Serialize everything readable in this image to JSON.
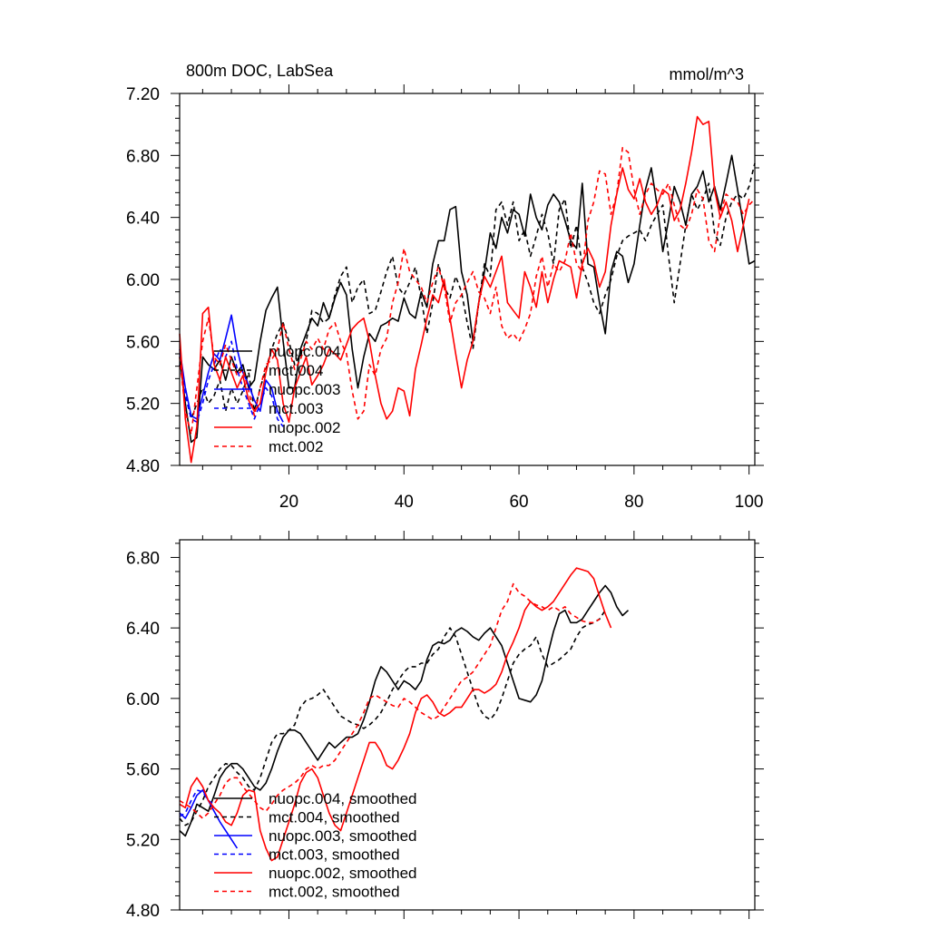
{
  "colors": {
    "black": "#000000",
    "blue": "#0000ff",
    "red": "#ff0000"
  },
  "chart_data": [
    {
      "type": "line",
      "title": "800m DOC, LabSea",
      "units": "mmol/m^3",
      "xlim": [
        1,
        101
      ],
      "ylim": [
        4.8,
        7.2
      ],
      "xticks": [
        20,
        40,
        60,
        80,
        100
      ],
      "xtick_labels": [
        "20",
        "40",
        "60",
        "80",
        "100"
      ],
      "yticks": [
        4.8,
        5.2,
        5.6,
        6.0,
        6.4,
        6.8,
        7.2
      ],
      "ytick_labels": [
        "4.80",
        "5.20",
        "5.60",
        "6.00",
        "6.40",
        "6.80",
        "7.20"
      ],
      "legend_position": "lower-left",
      "series": [
        {
          "name": "nuopc.004",
          "color": "black",
          "dash": false,
          "x_start": 1,
          "values": [
            5.5,
            5.2,
            4.95,
            4.98,
            5.5,
            5.45,
            5.42,
            5.48,
            5.35,
            5.5,
            5.4,
            5.45,
            5.3,
            5.35,
            5.6,
            5.8,
            5.88,
            5.95,
            5.6,
            5.3,
            5.3,
            5.55,
            5.65,
            5.75,
            5.7,
            5.85,
            5.75,
            5.88,
            5.98,
            5.9,
            5.55,
            5.3,
            5.5,
            5.65,
            5.6,
            5.7,
            5.72,
            5.75,
            5.73,
            5.88,
            5.78,
            5.75,
            5.92,
            5.82,
            6.1,
            6.25,
            6.25,
            6.45,
            6.47,
            6.05,
            5.9,
            5.6,
            5.85,
            6.05,
            6.3,
            6.2,
            6.4,
            6.3,
            6.45,
            6.42,
            6.28,
            6.55,
            6.4,
            6.32,
            6.48,
            6.55,
            6.5,
            6.38,
            6.25,
            6.2,
            6.62,
            6.1,
            6.08,
            5.85,
            5.65,
            6.05,
            6.18,
            6.15,
            5.98,
            6.1,
            6.35,
            6.58,
            6.72,
            6.48,
            6.18,
            6.38,
            6.6,
            6.5,
            6.35,
            6.55,
            6.6,
            6.7,
            6.5,
            6.6,
            6.45,
            6.62,
            6.8,
            6.58,
            6.35,
            6.1,
            6.12
          ]
        },
        {
          "name": "mct.004",
          "color": "black",
          "dash": true,
          "x_start": 1,
          "values": [
            5.45,
            5.3,
            5.1,
            5.2,
            5.3,
            5.2,
            5.25,
            5.35,
            5.15,
            5.3,
            5.2,
            5.28,
            5.4,
            5.15,
            5.3,
            5.42,
            5.55,
            5.65,
            5.72,
            5.6,
            5.45,
            5.52,
            5.6,
            5.8,
            5.78,
            5.72,
            5.75,
            5.9,
            6.02,
            6.08,
            5.85,
            5.95,
            6.0,
            5.78,
            5.8,
            5.92,
            6.05,
            6.15,
            5.95,
            5.9,
            5.98,
            6.08,
            5.88,
            5.65,
            5.85,
            6.1,
            5.95,
            5.88,
            6.02,
            5.92,
            5.72,
            5.55,
            5.85,
            6.1,
            6.02,
            6.45,
            6.5,
            6.35,
            6.5,
            6.25,
            6.32,
            6.15,
            6.28,
            6.42,
            6.3,
            6.1,
            6.45,
            6.52,
            6.2,
            6.35,
            6.08,
            5.98,
            5.85,
            5.78,
            5.9,
            6.0,
            6.15,
            6.25,
            6.28,
            6.3,
            6.32,
            6.25,
            6.35,
            6.42,
            6.48,
            6.15,
            5.85,
            6.1,
            6.35,
            6.55,
            6.45,
            6.52,
            6.62,
            6.3,
            6.22,
            6.4,
            6.5,
            6.55,
            6.52,
            6.6,
            6.75
          ]
        },
        {
          "name": "nuopc.003",
          "color": "blue",
          "dash": false,
          "x_start": 1,
          "values": [
            5.55,
            5.3,
            5.12,
            5.1,
            5.25,
            5.4,
            5.52,
            5.48,
            5.62,
            5.77,
            5.55,
            5.4,
            5.32,
            5.22,
            5.15,
            5.35,
            5.3,
            5.15,
            5.08
          ]
        },
        {
          "name": "mct.003",
          "color": "blue",
          "dash": true,
          "x_start": 1,
          "values": [
            5.45,
            5.25,
            5.1,
            5.08,
            5.2,
            5.35,
            5.45,
            5.55,
            5.5,
            5.6,
            5.42,
            5.3,
            5.2,
            5.1,
            5.2,
            5.3,
            5.25,
            5.1,
            5.05
          ]
        },
        {
          "name": "nuopc.002",
          "color": "red",
          "dash": false,
          "x_start": 1,
          "values": [
            5.65,
            5.1,
            4.82,
            5.05,
            5.78,
            5.82,
            5.45,
            5.35,
            5.5,
            5.4,
            5.3,
            5.38,
            5.22,
            5.15,
            5.2,
            5.4,
            5.55,
            5.48,
            5.2,
            5.08,
            5.3,
            5.4,
            5.5,
            5.32,
            5.38,
            5.45,
            5.55,
            5.52,
            5.48,
            5.58,
            5.68,
            5.72,
            5.75,
            5.6,
            5.38,
            5.2,
            5.1,
            5.15,
            5.3,
            5.28,
            5.12,
            5.42,
            5.58,
            5.75,
            5.9,
            5.85,
            6.0,
            5.75,
            5.52,
            5.3,
            5.48,
            5.6,
            5.85,
            6.02,
            5.95,
            6.05,
            6.15,
            5.85,
            5.8,
            5.75,
            6.05,
            5.95,
            5.82,
            6.05,
            5.85,
            6.0,
            6.12,
            6.1,
            6.08,
            5.88,
            6.1,
            6.2,
            6.12,
            5.95,
            6.05,
            6.35,
            6.55,
            6.72,
            6.58,
            6.52,
            6.65,
            6.5,
            6.42,
            6.48,
            6.58,
            6.55,
            6.38,
            6.45,
            6.62,
            6.82,
            7.05,
            7.0,
            7.02,
            6.58,
            6.4,
            6.5,
            6.38,
            6.18,
            6.35,
            6.52
          ]
        },
        {
          "name": "mct.002",
          "color": "red",
          "dash": true,
          "x_start": 1,
          "values": [
            5.5,
            5.15,
            5.0,
            5.3,
            5.6,
            5.75,
            5.5,
            5.45,
            5.58,
            5.48,
            5.38,
            5.42,
            5.28,
            5.12,
            5.3,
            5.45,
            5.48,
            5.55,
            5.72,
            5.55,
            5.42,
            5.48,
            5.6,
            5.55,
            5.62,
            5.55,
            5.68,
            5.72,
            5.6,
            5.52,
            5.28,
            5.1,
            5.15,
            5.45,
            5.38,
            5.55,
            5.62,
            5.85,
            5.98,
            6.2,
            6.05,
            6.0,
            5.95,
            5.85,
            5.98,
            6.08,
            5.95,
            5.72,
            5.85,
            5.9,
            5.98,
            6.05,
            5.92,
            5.88,
            5.78,
            5.95,
            5.7,
            5.62,
            5.65,
            5.6,
            5.68,
            5.78,
            6.02,
            6.15,
            5.95,
            6.1,
            6.05,
            6.12,
            6.3,
            6.1,
            6.05,
            6.38,
            6.5,
            6.7,
            6.68,
            6.42,
            6.55,
            6.85,
            6.82,
            6.58,
            6.42,
            6.55,
            6.62,
            6.58,
            6.55,
            6.62,
            6.48,
            6.35,
            6.32,
            6.42,
            6.58,
            6.52,
            6.25,
            6.18,
            6.42,
            6.55,
            6.52,
            6.5,
            6.42,
            6.48,
            6.52
          ]
        }
      ]
    },
    {
      "type": "line",
      "xlim": [
        1,
        101
      ],
      "ylim": [
        4.8,
        6.9
      ],
      "xticks": [
        20,
        40,
        60,
        80,
        100
      ],
      "yticks": [
        4.8,
        5.2,
        5.6,
        6.0,
        6.4,
        6.8
      ],
      "ytick_labels": [
        "4.80",
        "5.20",
        "5.60",
        "6.00",
        "6.40",
        "6.80"
      ],
      "legend_position": "lower-left",
      "series": [
        {
          "name": "nuopc.004, smoothed",
          "color": "black",
          "dash": false,
          "x_start": 1,
          "values": [
            5.25,
            5.22,
            5.3,
            5.4,
            5.38,
            5.36,
            5.45,
            5.55,
            5.6,
            5.63,
            5.63,
            5.6,
            5.55,
            5.5,
            5.48,
            5.52,
            5.6,
            5.7,
            5.78,
            5.82,
            5.82,
            5.8,
            5.75,
            5.7,
            5.65,
            5.7,
            5.75,
            5.72,
            5.75,
            5.78,
            5.78,
            5.8,
            5.88,
            5.98,
            6.1,
            6.18,
            6.15,
            6.1,
            6.05,
            6.1,
            6.08,
            6.05,
            6.1,
            6.22,
            6.3,
            6.32,
            6.31,
            6.33,
            6.38,
            6.4,
            6.38,
            6.35,
            6.33,
            6.37,
            6.4,
            6.35,
            6.3,
            6.2,
            6.1,
            6.0,
            5.99,
            5.98,
            6.02,
            6.1,
            6.25,
            6.38,
            6.48,
            6.5,
            6.43,
            6.43,
            6.45,
            6.5,
            6.55,
            6.6,
            6.64,
            6.6,
            6.52,
            6.47,
            6.5
          ]
        },
        {
          "name": "mct.004, smoothed",
          "color": "black",
          "dash": true,
          "x_start": 1,
          "values": [
            5.32,
            5.28,
            5.3,
            5.36,
            5.42,
            5.5,
            5.55,
            5.6,
            5.63,
            5.62,
            5.58,
            5.55,
            5.5,
            5.48,
            5.55,
            5.65,
            5.75,
            5.8,
            5.8,
            5.82,
            5.85,
            5.95,
            5.99,
            6.0,
            6.02,
            6.05,
            6.0,
            5.95,
            5.9,
            5.88,
            5.86,
            5.85,
            5.83,
            5.85,
            5.88,
            5.92,
            5.98,
            6.05,
            6.1,
            6.15,
            6.18,
            6.18,
            6.2,
            6.2,
            6.25,
            6.28,
            6.35,
            6.4,
            6.35,
            6.25,
            6.15,
            6.05,
            5.95,
            5.9,
            5.88,
            5.92,
            6.0,
            6.1,
            6.2,
            6.25,
            6.28,
            6.3,
            6.35,
            6.25,
            6.18,
            6.2,
            6.22,
            6.25,
            6.28,
            6.35,
            6.4,
            6.42,
            6.43,
            6.45,
            6.5
          ]
        },
        {
          "name": "nuopc.003, smoothed",
          "color": "blue",
          "dash": false,
          "x_start": 1,
          "values": [
            5.35,
            5.32,
            5.38,
            5.45,
            5.48,
            5.42,
            5.36,
            5.3,
            5.25,
            5.2,
            5.15
          ]
        },
        {
          "name": "mct.003, smoothed",
          "color": "blue",
          "dash": true,
          "x_start": 1,
          "values": [
            5.33,
            5.35,
            5.42,
            5.48,
            5.47,
            5.42,
            5.4
          ]
        },
        {
          "name": "nuopc.002, smoothed",
          "color": "red",
          "dash": false,
          "x_start": 1,
          "values": [
            5.4,
            5.38,
            5.5,
            5.55,
            5.5,
            5.42,
            5.38,
            5.35,
            5.3,
            5.28,
            5.35,
            5.45,
            5.48,
            5.47,
            5.25,
            5.15,
            5.08,
            5.1,
            5.2,
            5.3,
            5.4,
            5.52,
            5.58,
            5.6,
            5.55,
            5.45,
            5.35,
            5.28,
            5.25,
            5.35,
            5.45,
            5.55,
            5.65,
            5.75,
            5.75,
            5.7,
            5.62,
            5.6,
            5.65,
            5.72,
            5.8,
            5.92,
            6.0,
            6.02,
            5.98,
            5.92,
            5.9,
            5.92,
            5.95,
            5.95,
            6.0,
            6.05,
            6.05,
            6.03,
            6.05,
            6.08,
            6.15,
            6.25,
            6.32,
            6.4,
            6.5,
            6.55,
            6.52,
            6.5,
            6.52,
            6.55,
            6.6,
            6.65,
            6.7,
            6.74,
            6.73,
            6.72,
            6.68,
            6.58,
            6.48,
            6.4
          ]
        },
        {
          "name": "mct.002, smoothed",
          "color": "red",
          "dash": true,
          "x_start": 1,
          "values": [
            5.42,
            5.4,
            5.38,
            5.35,
            5.32,
            5.35,
            5.4,
            5.45,
            5.52,
            5.55,
            5.55,
            5.5,
            5.46,
            5.42,
            5.38,
            5.36,
            5.4,
            5.45,
            5.48,
            5.5,
            5.52,
            5.55,
            5.6,
            5.62,
            5.6,
            5.62,
            5.62,
            5.65,
            5.7,
            5.75,
            5.8,
            5.85,
            5.92,
            6.0,
            6.02,
            6.0,
            5.98,
            5.96,
            5.95,
            6.0,
            5.98,
            5.95,
            5.92,
            5.9,
            5.88,
            5.9,
            5.95,
            6.0,
            6.05,
            6.1,
            6.12,
            6.15,
            6.2,
            6.25,
            6.3,
            6.4,
            6.5,
            6.55,
            6.65,
            6.6,
            6.58,
            6.55,
            6.53,
            6.52,
            6.5,
            6.52,
            6.5,
            6.52,
            6.48,
            6.46,
            6.44,
            6.43,
            6.43,
            6.45
          ]
        }
      ]
    }
  ]
}
